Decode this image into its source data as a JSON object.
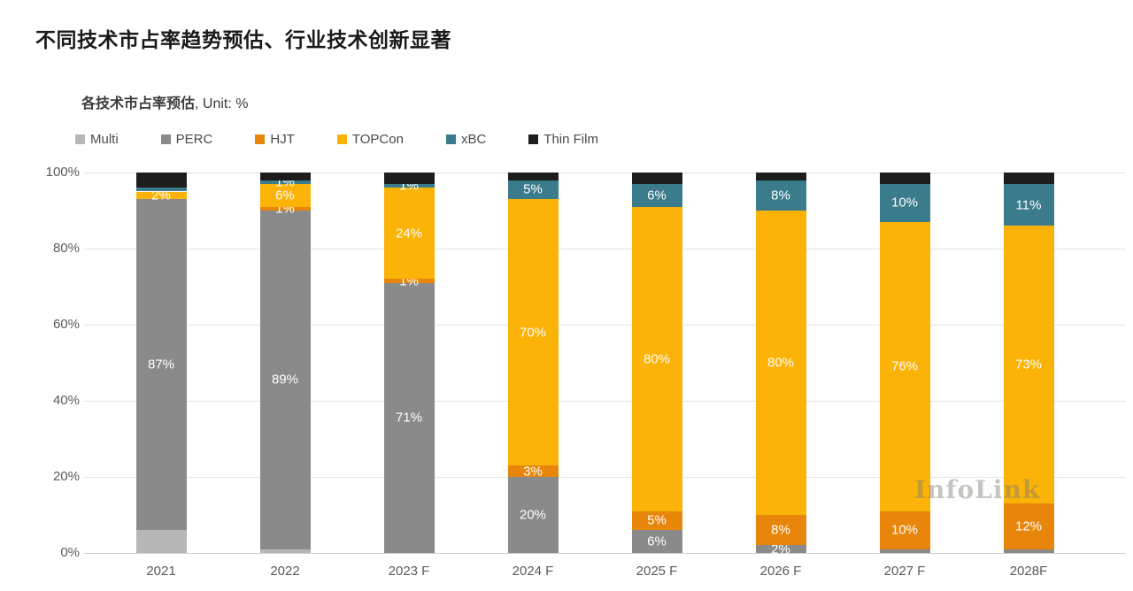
{
  "title": "不同技术市占率趋势预估、行业技术创新显著",
  "chart_data": {
    "type": "bar",
    "stacked": true,
    "title": "各技术市占率预估",
    "title_suffix": ", Unit: %",
    "unit": "%",
    "grid": true,
    "legend_position": "top",
    "ylim": [
      0,
      100
    ],
    "yticks": [
      "100%",
      "80%",
      "60%",
      "40%",
      "20%",
      "0%"
    ],
    "categories": [
      "2021",
      "2022",
      "2023 F",
      "2024 F",
      "2025 F",
      "2026 F",
      "2027 F",
      "2028F"
    ],
    "legend": [
      {
        "name": "Multi",
        "color": "#b7b7b7"
      },
      {
        "name": "PERC",
        "color": "#8a8a8a"
      },
      {
        "name": "HJT",
        "color": "#e7860b"
      },
      {
        "name": "TOPCon",
        "color": "#fcb307"
      },
      {
        "name": "xBC",
        "color": "#3a7c8c"
      },
      {
        "name": "Thin Film",
        "color": "#1d1d1d"
      }
    ],
    "series": [
      {
        "name": "Multi",
        "color": "#b7b7b7",
        "values": [
          6,
          1,
          0,
          0,
          0,
          0,
          0,
          0
        ],
        "labels": [
          "",
          "",
          "",
          "",
          "",
          "",
          "",
          ""
        ]
      },
      {
        "name": "PERC",
        "color": "#8a8a8a",
        "values": [
          87,
          89,
          71,
          20,
          6,
          2,
          1,
          1
        ],
        "labels": [
          "87%",
          "89%",
          "71%",
          "20%",
          "6%",
          "2%",
          "",
          ""
        ]
      },
      {
        "name": "HJT",
        "color": "#e7860b",
        "values": [
          0,
          1,
          1,
          3,
          5,
          8,
          10,
          12
        ],
        "labels": [
          "",
          "1%",
          "1%",
          "3%",
          "5%",
          "8%",
          "10%",
          "12%"
        ]
      },
      {
        "name": "TOPCon",
        "color": "#fcb307",
        "values": [
          2,
          6,
          24,
          70,
          80,
          80,
          76,
          73
        ],
        "labels": [
          "2%",
          "6%",
          "24%",
          "70%",
          "80%",
          "80%",
          "76%",
          "73%"
        ]
      },
      {
        "name": "xBC",
        "color": "#3a7c8c",
        "values": [
          1,
          1,
          1,
          5,
          6,
          8,
          10,
          11
        ],
        "labels": [
          "",
          "1%",
          "1%",
          "5%",
          "6%",
          "8%",
          "10%",
          "11%"
        ]
      },
      {
        "name": "Thin Film",
        "color": "#1d1d1d",
        "values": [
          4,
          2,
          3,
          2,
          3,
          2,
          3,
          3
        ],
        "labels": [
          "",
          "",
          "",
          "",
          "",
          "",
          "",
          ""
        ]
      }
    ],
    "watermark": "InfoLink"
  }
}
